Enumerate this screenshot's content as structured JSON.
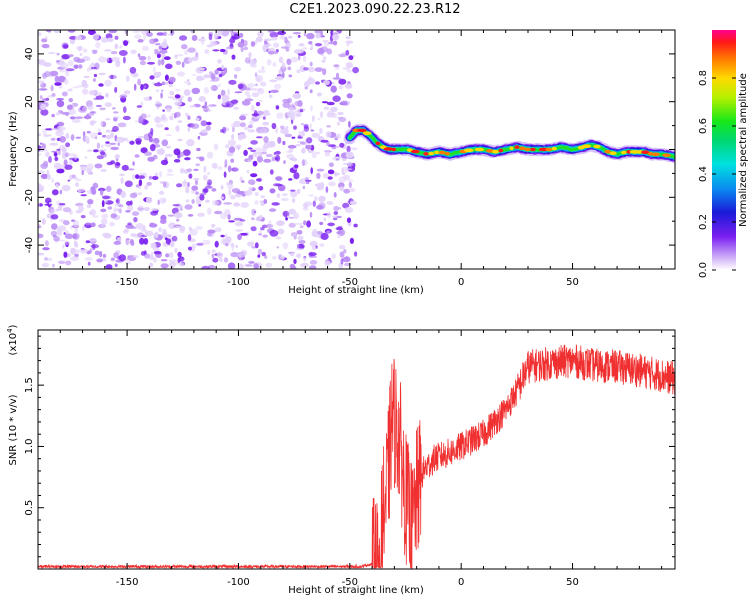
{
  "title": "C2E1.2023.090.22.23.R12",
  "chart_data": [
    {
      "type": "heatmap",
      "xlabel": "Height of straight line (km)",
      "ylabel": "Frequency (Hz)",
      "xlim": [
        -190,
        96
      ],
      "ylim": [
        -50,
        50
      ],
      "xticks": [
        -150,
        -100,
        -50,
        0,
        50
      ],
      "yticks": [
        -40,
        -20,
        0,
        20,
        40
      ],
      "noise_region_x": [
        -190,
        -50
      ],
      "signal_track": [
        [
          -50,
          5
        ],
        [
          -47,
          8
        ],
        [
          -44,
          8
        ],
        [
          -41,
          6
        ],
        [
          -38,
          3
        ],
        [
          -35,
          1
        ],
        [
          -32,
          0
        ],
        [
          -28,
          0
        ],
        [
          -24,
          0
        ],
        [
          -20,
          -1
        ],
        [
          -15,
          -2
        ],
        [
          -10,
          -1
        ],
        [
          -5,
          -2
        ],
        [
          0,
          -1
        ],
        [
          5,
          0
        ],
        [
          10,
          0
        ],
        [
          15,
          -1
        ],
        [
          20,
          0
        ],
        [
          25,
          1
        ],
        [
          30,
          0
        ],
        [
          35,
          0
        ],
        [
          40,
          0
        ],
        [
          45,
          1
        ],
        [
          50,
          0
        ],
        [
          55,
          1
        ],
        [
          58,
          2
        ],
        [
          62,
          1
        ],
        [
          66,
          -1
        ],
        [
          70,
          -2
        ],
        [
          74,
          -1
        ],
        [
          78,
          -1
        ],
        [
          82,
          -1
        ],
        [
          86,
          -2
        ],
        [
          90,
          -2
        ],
        [
          96,
          -3
        ]
      ],
      "colorbar": {
        "label": "Normalized spectral amplitude",
        "ticks": [
          0.0,
          0.2,
          0.4,
          0.6,
          0.8
        ],
        "tick_labels": [
          "0.0",
          "0.2",
          "0.4",
          "0.6",
          "0.8"
        ],
        "range": [
          0,
          1
        ]
      },
      "colors": {
        "noise_dark": "#7a1ff0",
        "noise_mid": "#b98af5",
        "noise_light": "#e3d2fb"
      }
    },
    {
      "type": "line",
      "xlabel": "Height of straight line (km)",
      "ylabel": "SNR (10 * v/v)",
      "multiplier": "(x10",
      "multiplier_exp": "4",
      "multiplier_close": ")",
      "xlim": [
        -190,
        96
      ],
      "ylim": [
        0,
        1.95
      ],
      "xticks": [
        -150,
        -100,
        -50,
        0,
        50
      ],
      "yticks": [
        0.5,
        1.0,
        1.5
      ],
      "ytick_labels": [
        "0.5",
        "1.0",
        "1.5"
      ],
      "color": "#f03030",
      "anchors": [
        [
          -190,
          0.02
        ],
        [
          -45,
          0.02
        ],
        [
          -38,
          0.05
        ],
        [
          -36,
          0.3
        ],
        [
          -33,
          0.7
        ],
        [
          -31,
          1.25
        ],
        [
          -28,
          1.1
        ],
        [
          -25,
          0.6
        ],
        [
          -22,
          0.3
        ],
        [
          -20,
          0.6
        ],
        [
          -17,
          0.8
        ],
        [
          -12,
          0.9
        ],
        [
          -5,
          0.95
        ],
        [
          0,
          1.0
        ],
        [
          10,
          1.1
        ],
        [
          20,
          1.3
        ],
        [
          25,
          1.45
        ],
        [
          30,
          1.65
        ],
        [
          40,
          1.68
        ],
        [
          50,
          1.7
        ],
        [
          60,
          1.66
        ],
        [
          70,
          1.65
        ],
        [
          80,
          1.62
        ],
        [
          90,
          1.58
        ],
        [
          96,
          1.55
        ]
      ]
    }
  ]
}
